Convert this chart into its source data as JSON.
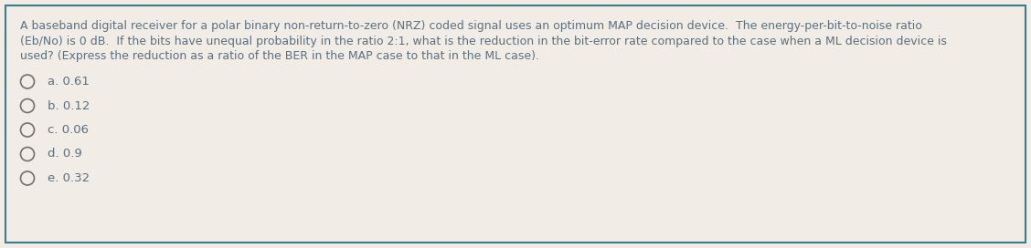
{
  "background_color": "#f1ede6",
  "border_color": "#3a7a8a",
  "question_text_lines": [
    "A baseband digital receiver for a polar binary non-return-to-zero (NRZ) coded signal uses an optimum MAP decision device.  The energy-per-bit-to-noise ratio",
    "(Eb/No) is 0 dB.  If the bits have unequal probability in the ratio 2:1, what is the reduction in the bit-error rate compared to the case when a ML decision device is",
    "used? (Express the reduction as a ratio of the BER in the MAP case to that in the ML case)."
  ],
  "options": [
    "a. 0.61",
    "b. 0.12",
    "c. 0.06",
    "d. 0.9",
    "e. 0.32"
  ],
  "text_color": "#5a7080",
  "circle_color": "#707070",
  "font_size_question": 9.0,
  "font_size_options": 9.5,
  "fig_width": 11.28,
  "fig_height": 2.72,
  "dpi": 100
}
